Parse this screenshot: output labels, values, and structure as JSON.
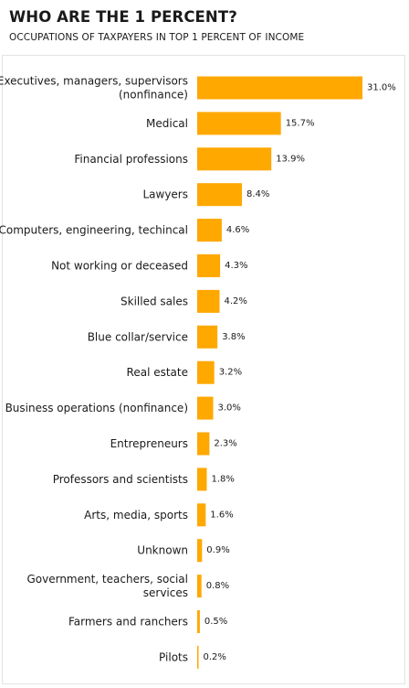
{
  "chart_data": {
    "type": "bar",
    "orientation": "horizontal",
    "title": "WHO ARE THE 1 PERCENT?",
    "subtitle": "OCCUPATIONS OF TAXPAYERS IN TOP 1 PERCENT OF INCOME",
    "bar_color": "#ffa800",
    "categories": [
      [
        "Executives, managers, supervisors",
        "(nonfinance)"
      ],
      [
        "Medical"
      ],
      [
        "Financial professions"
      ],
      [
        "Lawyers"
      ],
      [
        "Computers, engineering, techincal"
      ],
      [
        "Not working or deceased"
      ],
      [
        "Skilled sales"
      ],
      [
        "Blue collar/service"
      ],
      [
        "Real estate"
      ],
      [
        "Business operations (nonfinance)"
      ],
      [
        "Entrepreneurs"
      ],
      [
        "Professors and scientists"
      ],
      [
        "Arts, media, sports"
      ],
      [
        "Unknown"
      ],
      [
        "Government, teachers, social",
        "services"
      ],
      [
        "Farmers and ranchers"
      ],
      [
        "Pilots"
      ]
    ],
    "values": [
      31.0,
      15.7,
      13.9,
      8.4,
      4.6,
      4.3,
      4.2,
      3.8,
      3.2,
      3.0,
      2.3,
      1.8,
      1.6,
      0.9,
      0.8,
      0.5,
      0.2
    ],
    "value_labels": [
      "31.0%",
      "15.7%",
      "13.9%",
      "8.4%",
      "4.6%",
      "4.3%",
      "4.2%",
      "3.8%",
      "3.2%",
      "3.0%",
      "2.3%",
      "1.8%",
      "1.6%",
      "0.9%",
      "0.8%",
      "0.5%",
      "0.2%"
    ],
    "unit": "%",
    "xlim": [
      0,
      31.0
    ]
  }
}
